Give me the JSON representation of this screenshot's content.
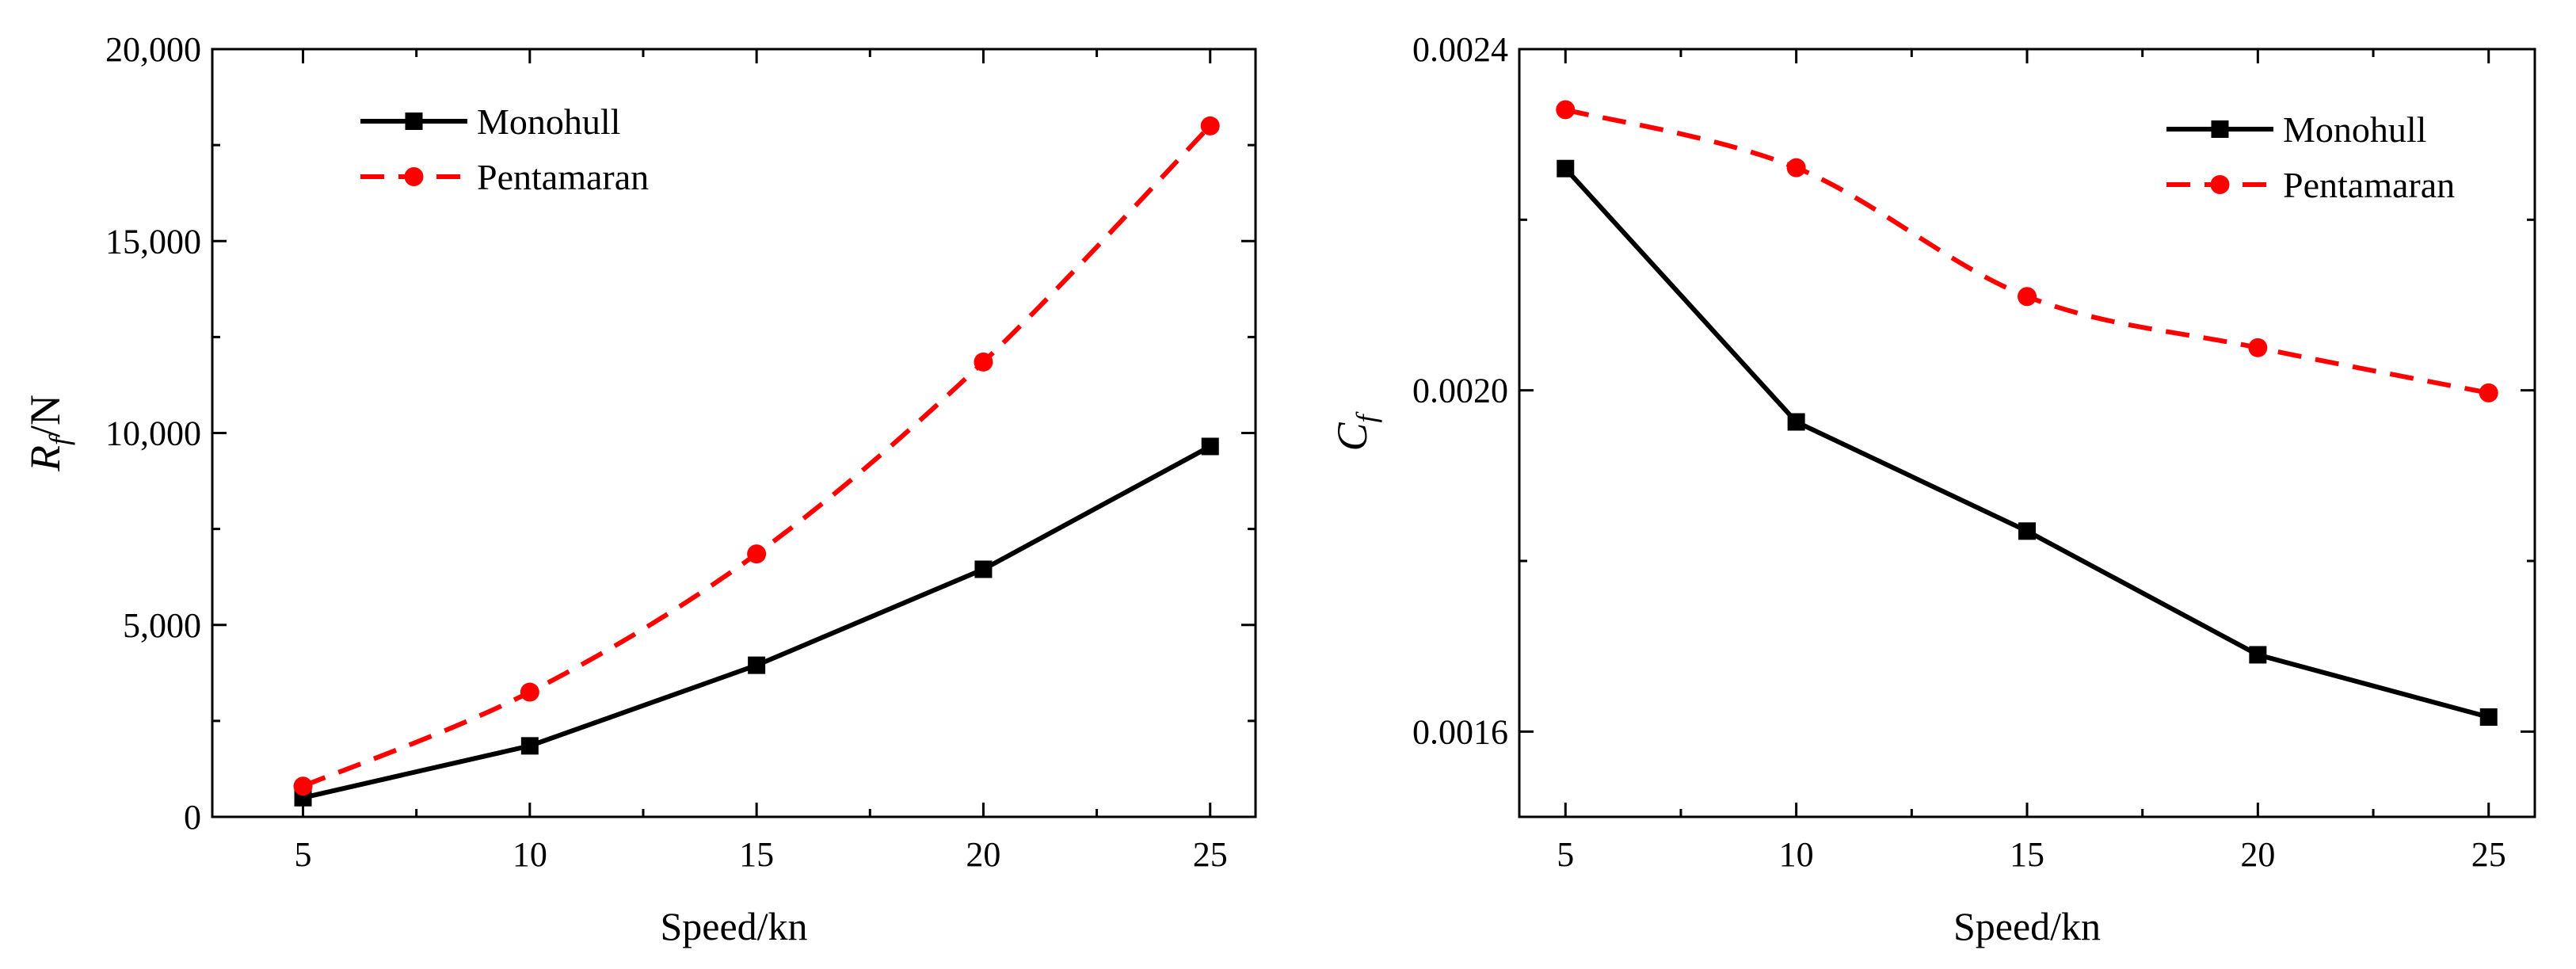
{
  "chart_data": [
    {
      "type": "line",
      "xlabel": "Speed/kn",
      "ylabel": {
        "base": "R",
        "sub": "f",
        "suffix": "/N"
      },
      "x": [
        5,
        10,
        15,
        20,
        25
      ],
      "xlim": [
        3,
        26
      ],
      "xticks": [
        5,
        10,
        15,
        20,
        25
      ],
      "xtick_labels": [
        "5",
        "10",
        "15",
        "20",
        "25"
      ],
      "ylim": [
        0,
        20000
      ],
      "yticks": [
        0,
        5000,
        10000,
        15000,
        20000
      ],
      "ytick_labels": [
        "0",
        "5,000",
        "10,000",
        "15,000",
        "20,000"
      ],
      "legend_position": "top-left",
      "series": [
        {
          "name": "Monohull",
          "values": [
            500,
            1850,
            3950,
            6450,
            9650
          ],
          "color": "#000000",
          "style": "solid",
          "marker": "square"
        },
        {
          "name": "Pentamaran",
          "values": [
            800,
            3250,
            6850,
            11850,
            18000
          ],
          "color": "#ff0000",
          "style": "dashed",
          "marker": "circle"
        }
      ]
    },
    {
      "type": "line",
      "xlabel": "Speed/kn",
      "ylabel": {
        "base": "C",
        "sub": "f",
        "suffix": ""
      },
      "x": [
        5,
        10,
        15,
        20,
        25
      ],
      "xlim": [
        4,
        26
      ],
      "xticks": [
        5,
        10,
        15,
        20,
        25
      ],
      "xtick_labels": [
        "5",
        "10",
        "15",
        "20",
        "25"
      ],
      "ylim": [
        0.0015,
        0.0024
      ],
      "yticks": [
        0.0016,
        0.002,
        0.0024
      ],
      "ytick_labels": [
        "0.0016",
        "0.0020",
        "0.0024"
      ],
      "legend_position": "top-right",
      "series": [
        {
          "name": "Monohull",
          "values": [
            0.00226,
            0.001963,
            0.001835,
            0.00169,
            0.001617
          ],
          "color": "#000000",
          "style": "solid",
          "marker": "square"
        },
        {
          "name": "Pentamaran",
          "values": [
            0.002329,
            0.002261,
            0.00211,
            0.00205,
            0.001997
          ],
          "color": "#ff0000",
          "style": "dashed",
          "marker": "circle"
        }
      ]
    }
  ]
}
